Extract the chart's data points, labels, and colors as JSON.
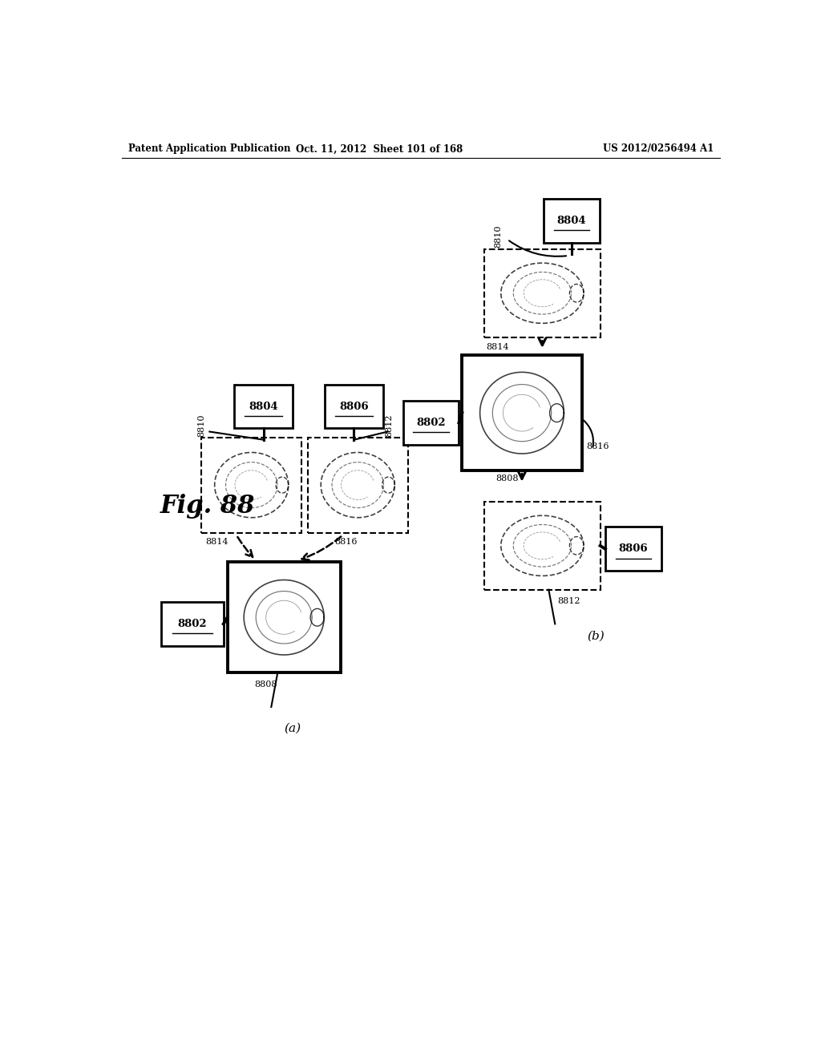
{
  "bg_color": "#ffffff",
  "header_left": "Patent Application Publication",
  "header_mid": "Oct. 11, 2012  Sheet 101 of 168",
  "header_right": "US 2012/0256494 A1",
  "fig_label": "Fig. 88"
}
